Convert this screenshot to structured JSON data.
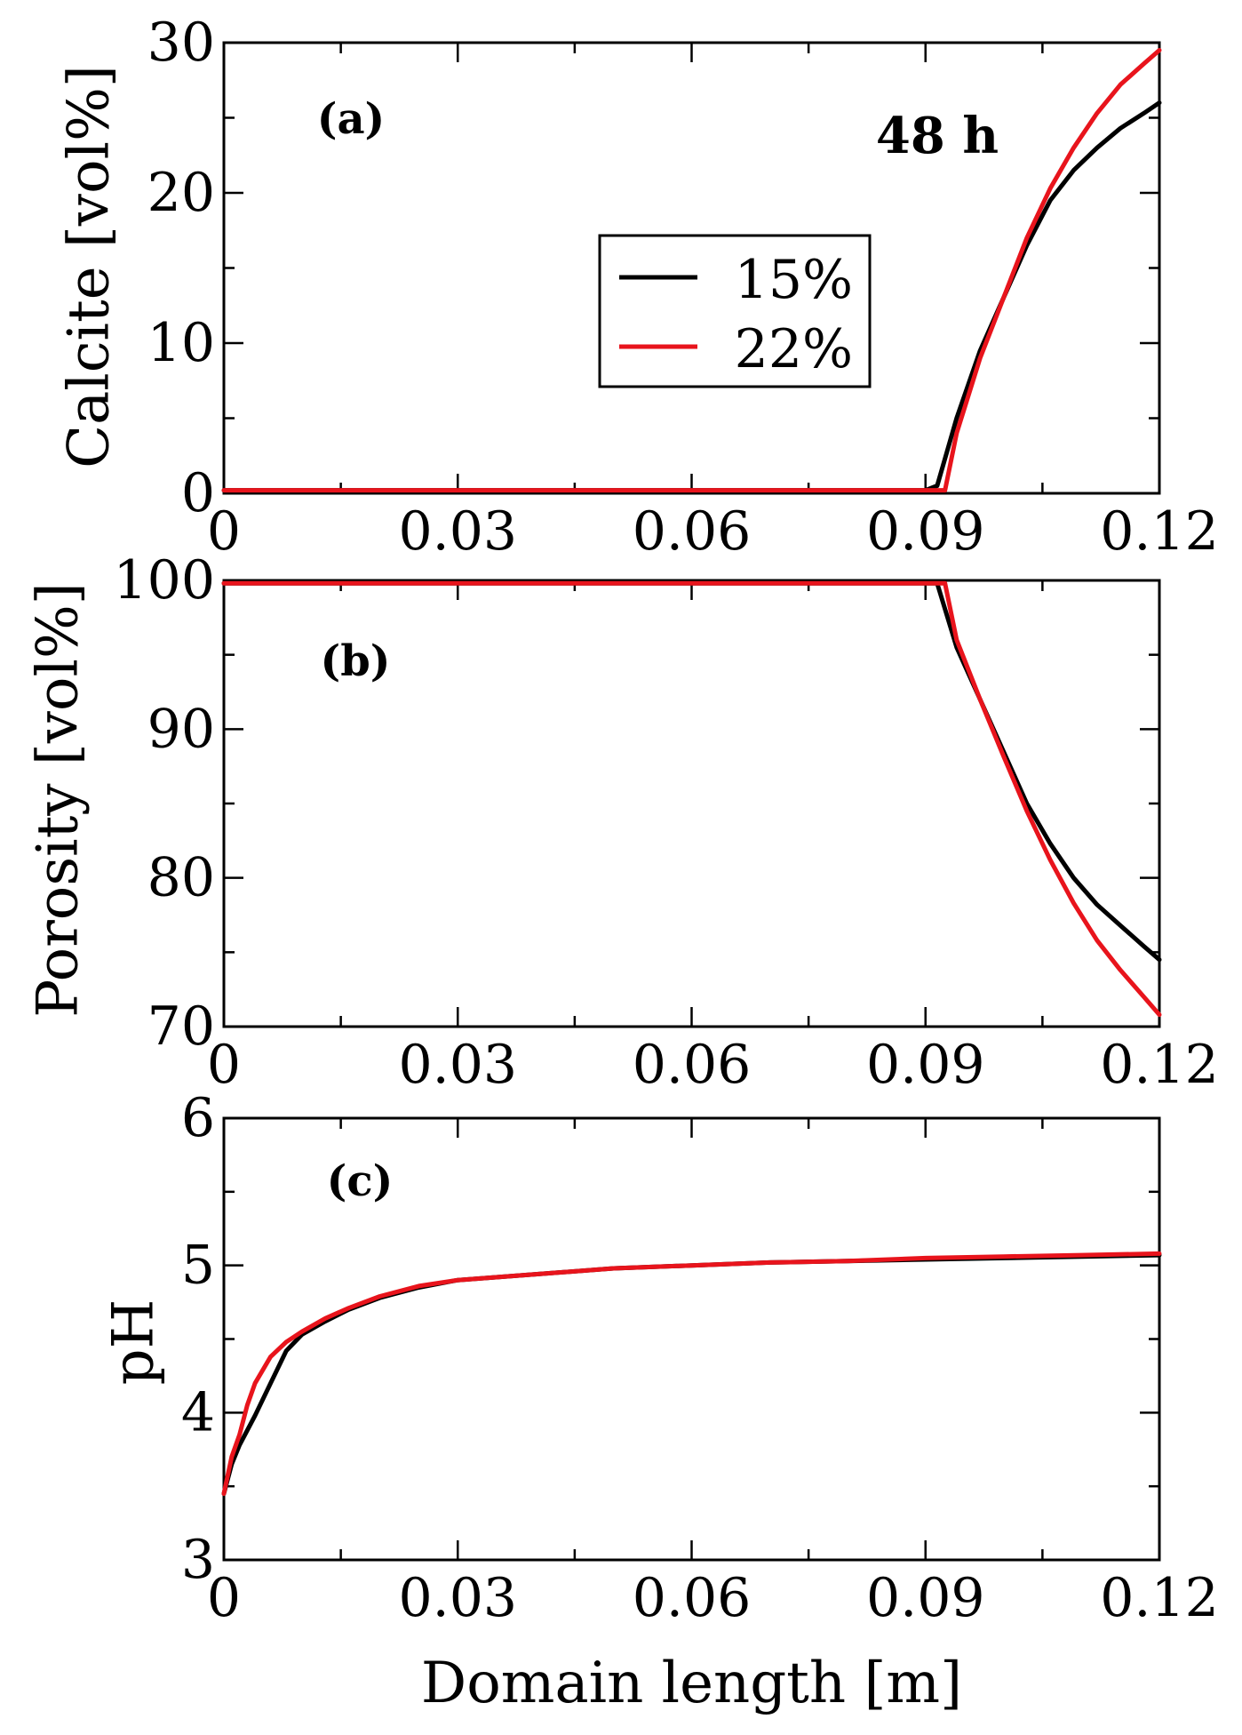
{
  "chart_data": [
    {
      "type": "line",
      "panel_label": "(a)",
      "annotation": "48 h",
      "xlabel": "",
      "ylabel": "Calcite [vol%]",
      "xlim": [
        0,
        0.12
      ],
      "ylim": [
        0,
        30
      ],
      "x_ticks": [
        "0",
        "0.03",
        "0.06",
        "0.09",
        "0.12"
      ],
      "y_ticks": [
        "0",
        "10",
        "20",
        "30"
      ],
      "legend": {
        "placement": "center-right",
        "entries": [
          "15%",
          "22%"
        ]
      },
      "series": [
        {
          "name": "15%",
          "color": "#000000",
          "x": [
            0,
            0.09,
            0.0915,
            0.094,
            0.097,
            0.1,
            0.103,
            0.106,
            0.109,
            0.112,
            0.115,
            0.118,
            0.12
          ],
          "y": [
            0.2,
            0.2,
            0.5,
            5,
            9.5,
            13,
            16.5,
            19.5,
            21.5,
            23,
            24.3,
            25.3,
            26
          ]
        },
        {
          "name": "22%",
          "color": "#e8141c",
          "x": [
            0,
            0.0925,
            0.094,
            0.097,
            0.1,
            0.103,
            0.106,
            0.109,
            0.112,
            0.115,
            0.118,
            0.12
          ],
          "y": [
            0.2,
            0.2,
            4,
            9,
            13,
            17,
            20.3,
            23,
            25.3,
            27.2,
            28.6,
            29.5
          ]
        }
      ]
    },
    {
      "type": "line",
      "panel_label": "(b)",
      "xlabel": "",
      "ylabel": "Porosity [vol%]",
      "xlim": [
        0,
        0.12
      ],
      "ylim": [
        70,
        100
      ],
      "x_ticks": [
        "0",
        "0.03",
        "0.06",
        "0.09",
        "0.12"
      ],
      "y_ticks": [
        "70",
        "80",
        "90",
        "100"
      ],
      "series": [
        {
          "name": "15%",
          "color": "#000000",
          "x": [
            0,
            0.0915,
            0.094,
            0.097,
            0.1,
            0.103,
            0.106,
            0.109,
            0.112,
            0.115,
            0.118,
            0.12
          ],
          "y": [
            99.8,
            99.8,
            95.5,
            92,
            88.5,
            85,
            82.3,
            80,
            78.2,
            76.8,
            75.4,
            74.5
          ]
        },
        {
          "name": "22%",
          "color": "#e8141c",
          "x": [
            0,
            0.0925,
            0.094,
            0.097,
            0.1,
            0.103,
            0.106,
            0.109,
            0.112,
            0.115,
            0.118,
            0.12
          ],
          "y": [
            99.8,
            99.8,
            96,
            92,
            88.2,
            84.5,
            81.2,
            78.3,
            75.8,
            73.8,
            72,
            70.8
          ]
        }
      ]
    },
    {
      "type": "line",
      "panel_label": "(c)",
      "xlabel": "Domain length [m]",
      "ylabel": "pH",
      "xlim": [
        0,
        0.12
      ],
      "ylim": [
        3,
        6
      ],
      "x_ticks": [
        "0",
        "0.03",
        "0.06",
        "0.09",
        "0.12"
      ],
      "y_ticks": [
        "3",
        "4",
        "5",
        "6"
      ],
      "series": [
        {
          "name": "15%",
          "color": "#000000",
          "x": [
            0,
            0.001,
            0.002,
            0.004,
            0.006,
            0.008,
            0.01,
            0.013,
            0.016,
            0.02,
            0.025,
            0.03,
            0.04,
            0.05,
            0.06,
            0.07,
            0.08,
            0.09,
            0.1,
            0.11,
            0.12
          ],
          "y": [
            3.45,
            3.65,
            3.78,
            3.98,
            4.2,
            4.42,
            4.53,
            4.62,
            4.7,
            4.78,
            4.85,
            4.9,
            4.94,
            4.98,
            5.0,
            5.02,
            5.03,
            5.04,
            5.05,
            5.06,
            5.07
          ]
        },
        {
          "name": "22%",
          "color": "#e8141c",
          "x": [
            0,
            0.001,
            0.002,
            0.003,
            0.004,
            0.006,
            0.008,
            0.01,
            0.013,
            0.016,
            0.02,
            0.025,
            0.03,
            0.04,
            0.05,
            0.06,
            0.07,
            0.08,
            0.09,
            0.1,
            0.11,
            0.12
          ],
          "y": [
            3.45,
            3.7,
            3.85,
            4.05,
            4.2,
            4.38,
            4.48,
            4.55,
            4.64,
            4.71,
            4.79,
            4.86,
            4.9,
            4.94,
            4.98,
            5.0,
            5.02,
            5.03,
            5.05,
            5.06,
            5.07,
            5.08
          ]
        }
      ]
    }
  ]
}
